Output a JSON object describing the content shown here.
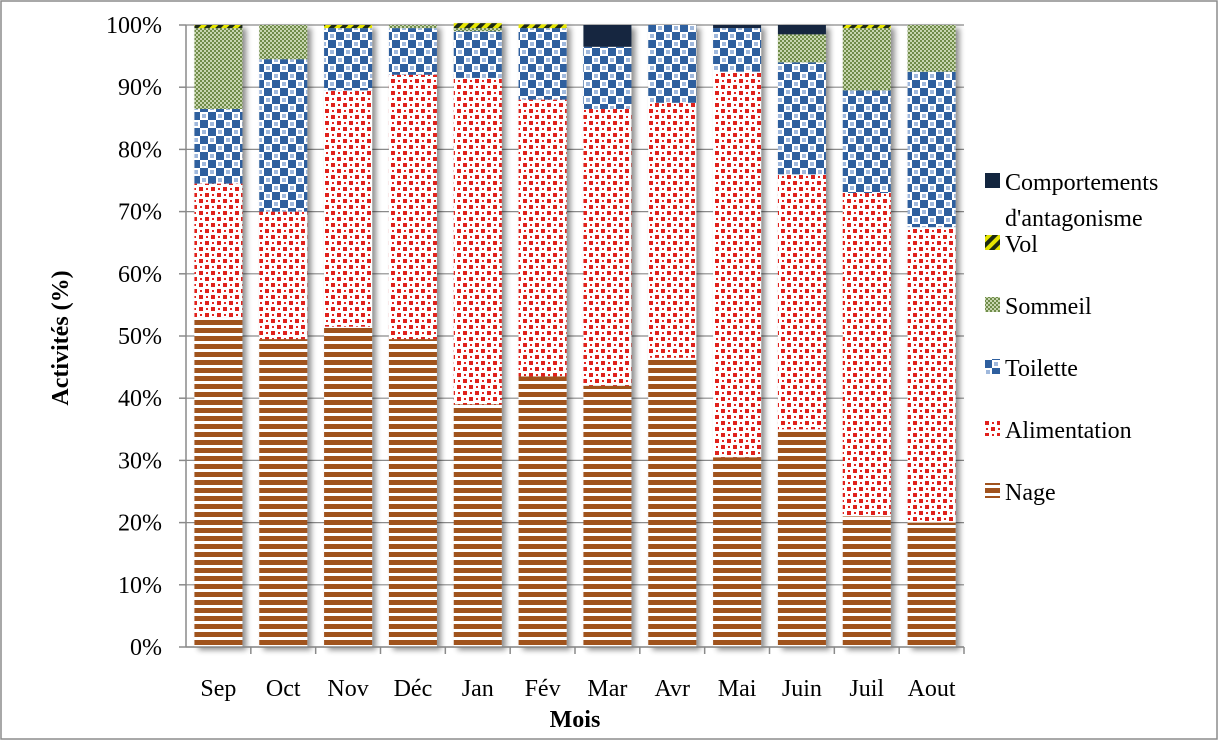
{
  "chart_data": {
    "type": "bar",
    "stacked": true,
    "normalized": true,
    "xlabel": "Mois",
    "ylabel": "Activités (%)",
    "ylim": [
      0,
      100
    ],
    "yticks": [
      "0%",
      "10%",
      "20%",
      "30%",
      "40%",
      "50%",
      "60%",
      "70%",
      "80%",
      "90%",
      "100%"
    ],
    "grid": "horizontal",
    "legend_position": "right",
    "categories": [
      "Sep",
      "Oct",
      "Nov",
      "Déc",
      "Jan",
      "Fév",
      "Mar",
      "Avr",
      "Mai",
      "Juin",
      "Juil",
      "Aout"
    ],
    "series": [
      {
        "name": "Nage",
        "pattern": "horizontal-stripes",
        "color": "#a0521d",
        "values": [
          53,
          49.5,
          51.5,
          49.5,
          39,
          43.5,
          42,
          46.5,
          30.5,
          35,
          21,
          20
        ]
      },
      {
        "name": "Alimentation",
        "pattern": "red-dots",
        "color": "#e0201c",
        "values": [
          21.5,
          20.5,
          38,
          42.5,
          52.5,
          44.5,
          44.5,
          41,
          62,
          41,
          52,
          47.5
        ]
      },
      {
        "name": "Toilette",
        "pattern": "blue-checker",
        "color": "#2e5f9e",
        "values": [
          12,
          24.5,
          10,
          7.5,
          7.5,
          11.5,
          10,
          12.5,
          7,
          18,
          16.5,
          25
        ]
      },
      {
        "name": "Sommeil",
        "pattern": "green-stipple",
        "color": "#7d9a58",
        "values": [
          13,
          5.5,
          0,
          0.5,
          0.5,
          0,
          0,
          0,
          0,
          4.5,
          10,
          7.5
        ]
      },
      {
        "name": "Vol",
        "pattern": "yellow-diagonal",
        "color": "#e6e600",
        "values": [
          0.5,
          0,
          0.5,
          0,
          0.8,
          0.6,
          0,
          0,
          0,
          0,
          0.5,
          0
        ]
      },
      {
        "name": "Comportements d'antagonisme",
        "pattern": "solid-navy",
        "color": "#13263f",
        "values": [
          0,
          0,
          0,
          0,
          0,
          0,
          3.5,
          0,
          0.5,
          1.5,
          0,
          0
        ]
      }
    ]
  },
  "legend": {
    "items": [
      {
        "lines": [
          "Comportements",
          "d'antagonisme"
        ],
        "pattern": "solid-navy"
      },
      {
        "lines": [
          "Vol"
        ],
        "pattern": "yellow-diagonal"
      },
      {
        "lines": [
          "Sommeil"
        ],
        "pattern": "green-stipple"
      },
      {
        "lines": [
          "Toilette"
        ],
        "pattern": "blue-checker"
      },
      {
        "lines": [
          "Alimentation"
        ],
        "pattern": "red-dots"
      },
      {
        "lines": [
          "Nage"
        ],
        "pattern": "horizontal-stripes"
      }
    ]
  }
}
